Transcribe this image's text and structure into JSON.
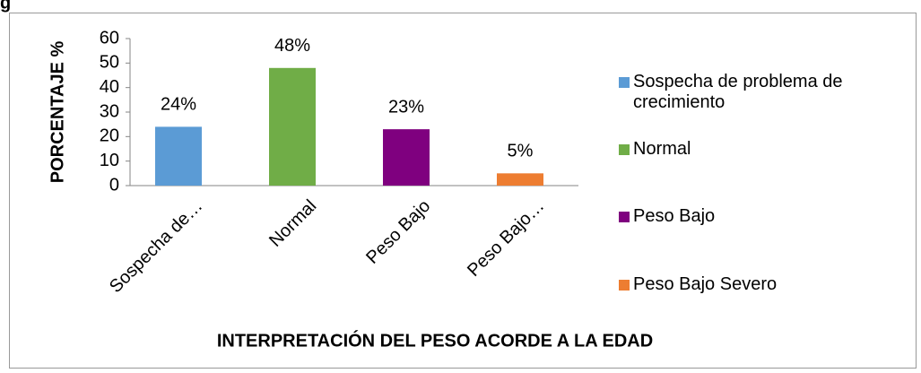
{
  "corner_text": "g",
  "chart_data": {
    "type": "bar",
    "categories": [
      "Sospecha de…",
      "Normal",
      "Peso Bajo",
      "Peso Bajo…"
    ],
    "values": [
      24,
      48,
      23,
      5
    ],
    "value_labels": [
      "24%",
      "48%",
      "23%",
      "5%"
    ],
    "colors": [
      "#5b9bd5",
      "#70ad47",
      "#7f007f",
      "#ed7d31"
    ],
    "legend": [
      "Sospecha de problema de crecimiento",
      "Normal",
      "Peso Bajo",
      "Peso Bajo Severo"
    ],
    "legend_position": "right",
    "ylabel": "PORCENTAJE %",
    "xlabel": "INTERPRETACIÓN DEL PESO ACORDE A LA EDAD",
    "ylim": [
      0,
      60
    ],
    "yticks": [
      0,
      10,
      20,
      30,
      40,
      50,
      60
    ],
    "grid": false
  }
}
